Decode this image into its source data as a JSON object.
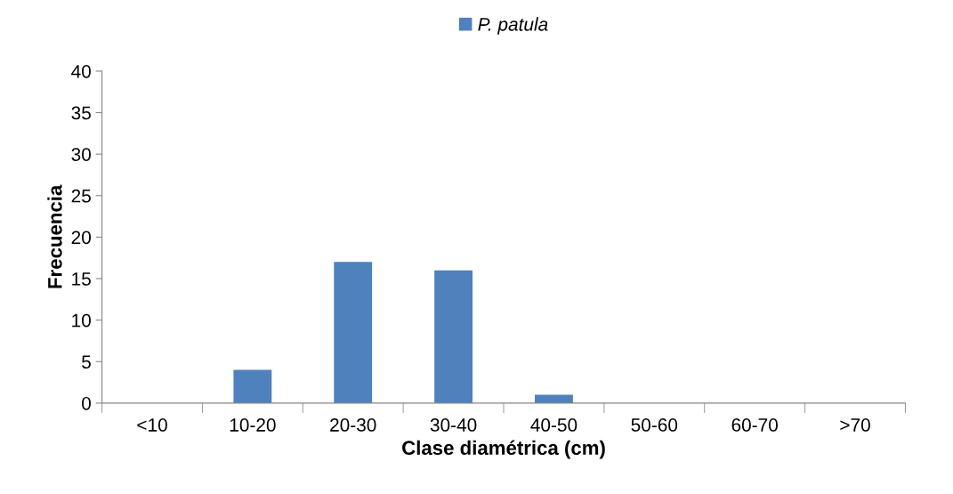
{
  "chart_data": {
    "type": "bar",
    "xlabel": "Clase diamétrica (cm)",
    "ylabel": "Frecuencia",
    "categories": [
      "<10",
      "10-20",
      "20-30",
      "30-40",
      "40-50",
      "50-60",
      "60-70",
      ">70"
    ],
    "series": [
      {
        "name": "P. patula",
        "color": "#4f81bd",
        "values": [
          0,
          4,
          17,
          16,
          1,
          0,
          0,
          0
        ]
      }
    ],
    "ylim": [
      0,
      40
    ],
    "yticks": [
      0,
      5,
      10,
      15,
      20,
      25,
      30,
      35,
      40
    ],
    "grid": false,
    "legend": "top"
  }
}
